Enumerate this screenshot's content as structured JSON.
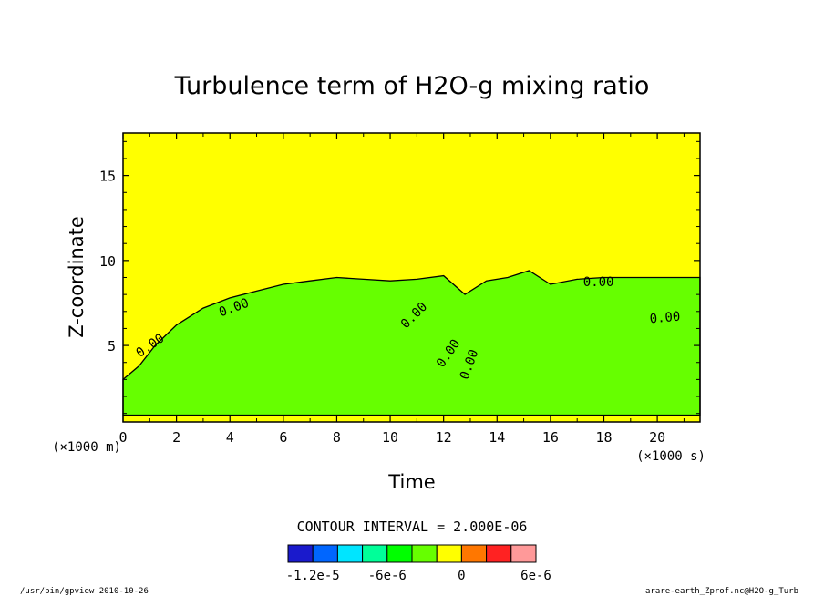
{
  "chart_data": {
    "type": "heatmap",
    "title": "Turbulence term of H2O-g mixing ratio",
    "xlabel": "Time",
    "ylabel": "Z-coordinate",
    "x_unit": "(×1000 s)",
    "y_unit": "(×1000 m)",
    "xlim": [
      0,
      21.6
    ],
    "ylim": [
      0.5,
      17.5
    ],
    "x_ticks": [
      "0",
      "2",
      "4",
      "6",
      "8",
      "10",
      "12",
      "14",
      "16",
      "18",
      "20"
    ],
    "y_ticks": [
      "5",
      "10",
      "15"
    ],
    "x_tick_values": [
      0,
      2,
      4,
      6,
      8,
      10,
      12,
      14,
      16,
      18,
      20
    ],
    "y_tick_values": [
      5,
      10,
      15
    ],
    "contour_label": "0.00",
    "contour_interval_text": "CONTOUR INTERVAL = 2.000E-06",
    "colorbar": {
      "colors": [
        "#1a1acc",
        "#0066ff",
        "#00e5ff",
        "#00ff99",
        "#00ff00",
        "#66ff00",
        "#ffff00",
        "#ff7700",
        "#ff2222",
        "#ff9999"
      ],
      "tick_labels": [
        "-1.2e-5",
        "-6e-6",
        "0",
        "6e-6"
      ],
      "tick_values": [
        -1.2e-05,
        -6e-06,
        0,
        6e-06
      ],
      "range": [
        -1.4e-05,
        6e-06
      ]
    },
    "region_colors": {
      "background": "#ffff00",
      "negative": "#66ff00"
    },
    "green_region_top": [
      [
        0,
        3.0
      ],
      [
        0.6,
        3.8
      ],
      [
        1.2,
        5.0
      ],
      [
        2.0,
        6.2
      ],
      [
        3.0,
        7.2
      ],
      [
        4.0,
        7.8
      ],
      [
        5.0,
        8.2
      ],
      [
        6.0,
        8.6
      ],
      [
        7.0,
        8.8
      ],
      [
        8.0,
        9.0
      ],
      [
        9.0,
        8.9
      ],
      [
        10.0,
        8.8
      ],
      [
        11.0,
        8.9
      ],
      [
        12.0,
        9.1
      ],
      [
        12.8,
        8.0
      ],
      [
        13.6,
        8.8
      ],
      [
        14.4,
        9.0
      ],
      [
        15.2,
        9.4
      ],
      [
        16.0,
        8.6
      ],
      [
        17.0,
        8.9
      ],
      [
        18.0,
        9.0
      ],
      [
        19.0,
        9.0
      ],
      [
        20.0,
        9.0
      ],
      [
        21.6,
        9.0
      ]
    ],
    "green_region_bottom": [
      [
        0,
        0.9
      ],
      [
        2,
        0.9
      ],
      [
        4,
        0.9
      ],
      [
        6,
        0.9
      ],
      [
        8,
        0.9
      ],
      [
        10,
        0.9
      ],
      [
        12,
        0.9
      ],
      [
        14,
        0.9
      ],
      [
        16,
        0.9
      ],
      [
        18,
        0.9
      ],
      [
        20,
        0.9
      ],
      [
        21.6,
        0.9
      ]
    ]
  },
  "footer": {
    "left": "/usr/bin/gpview  2010-10-26",
    "right": "arare-earth_Zprof.nc@H2O-g_Turb"
  }
}
